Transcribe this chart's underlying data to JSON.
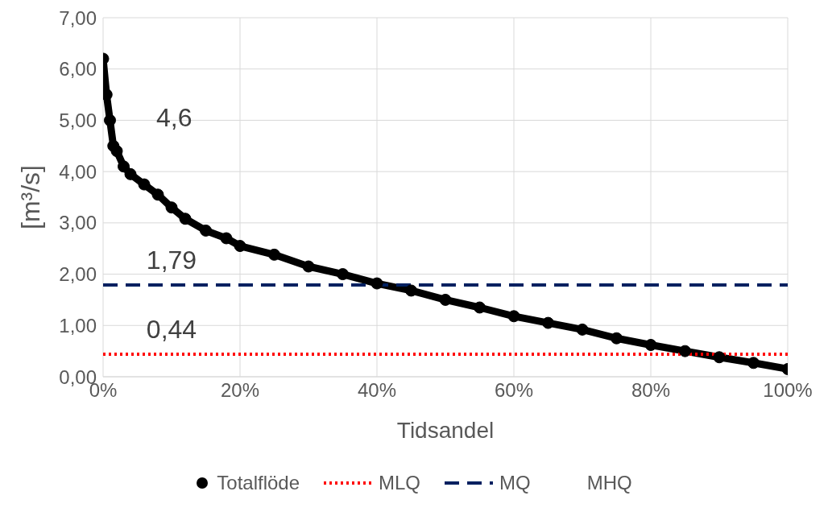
{
  "chart_data": {
    "type": "line",
    "xlabel": "Tidsandel",
    "ylabel": "[m³/s]",
    "xlim": [
      0,
      100
    ],
    "xticks": [
      {
        "value": 0,
        "label": "0%"
      },
      {
        "value": 20,
        "label": "20%"
      },
      {
        "value": 40,
        "label": "40%"
      },
      {
        "value": 60,
        "label": "60%"
      },
      {
        "value": 80,
        "label": "80%"
      },
      {
        "value": 100,
        "label": "100%"
      }
    ],
    "ylim": [
      0,
      7
    ],
    "yticks": [
      {
        "value": 0,
        "label": "0,00"
      },
      {
        "value": 1,
        "label": "1,00"
      },
      {
        "value": 2,
        "label": "2,00"
      },
      {
        "value": 3,
        "label": "3,00"
      },
      {
        "value": 4,
        "label": "4,00"
      },
      {
        "value": 5,
        "label": "5,00"
      },
      {
        "value": 6,
        "label": "6,00"
      },
      {
        "value": 7,
        "label": "7,00"
      }
    ],
    "grid": true,
    "legend": "bottom",
    "series": [
      {
        "name": "Totalflöde",
        "marker": "circle",
        "color": "#000000",
        "x": [
          0,
          0.5,
          1,
          1.5,
          2,
          3,
          4,
          6,
          8,
          10,
          12,
          15,
          18,
          20,
          25,
          30,
          35,
          40,
          45,
          50,
          55,
          60,
          65,
          70,
          75,
          80,
          85,
          90,
          95,
          100
        ],
        "values": [
          6.2,
          5.5,
          5.0,
          4.5,
          4.4,
          4.1,
          3.95,
          3.75,
          3.55,
          3.3,
          3.08,
          2.85,
          2.7,
          2.55,
          2.38,
          2.15,
          2.0,
          1.82,
          1.68,
          1.5,
          1.35,
          1.18,
          1.05,
          0.92,
          0.75,
          0.62,
          0.5,
          0.38,
          0.27,
          0.15
        ]
      },
      {
        "name": "MLQ",
        "type": "line",
        "color": "#ff0000",
        "line_style": "dotted",
        "x": [
          0,
          100
        ],
        "values": [
          0.44,
          0.44
        ]
      },
      {
        "name": "MQ",
        "type": "line",
        "color": "#002060",
        "line_style": "dashed",
        "x": [
          0,
          100
        ],
        "values": [
          1.79,
          1.79
        ]
      }
    ],
    "annotations": [
      "MHQ",
      "4,6",
      {
        "text": "1,79",
        "y": 1.79
      },
      {
        "text": "0,44",
        "y": 0.44
      }
    ]
  }
}
